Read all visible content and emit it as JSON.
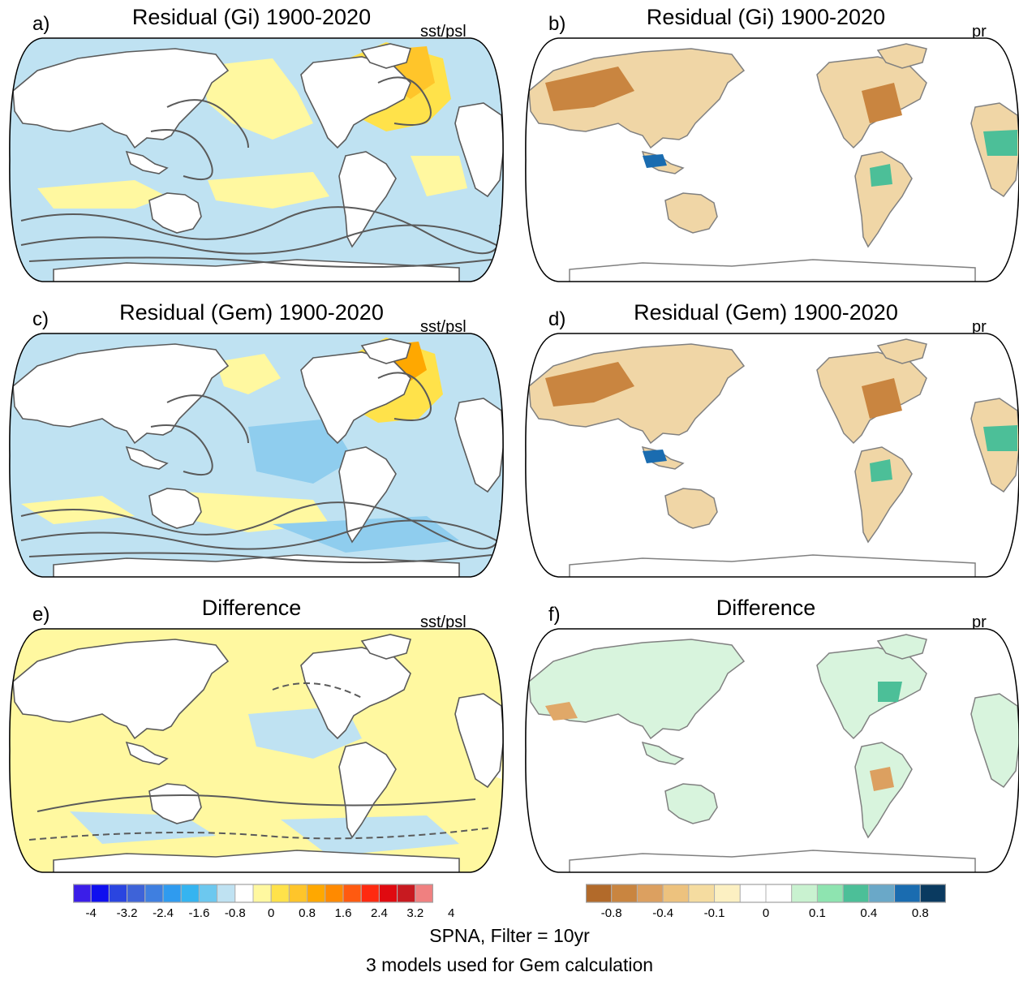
{
  "panels": [
    {
      "id": "a",
      "letter": "a)",
      "title": "Residual (Gi) 1900-2020",
      "variable": "sst/psl",
      "field": "sst"
    },
    {
      "id": "b",
      "letter": "b)",
      "title": "Residual (Gi) 1900-2020",
      "variable": "pr",
      "field": "pr"
    },
    {
      "id": "c",
      "letter": "c)",
      "title": "Residual (Gem) 1900-2020",
      "variable": "sst/psl",
      "field": "sst"
    },
    {
      "id": "d",
      "letter": "d)",
      "title": "Residual (Gem) 1900-2020",
      "variable": "pr",
      "field": "pr"
    },
    {
      "id": "e",
      "letter": "e)",
      "title": "Difference",
      "variable": "sst/psl",
      "field": "sst"
    },
    {
      "id": "f",
      "letter": "f)",
      "title": "Difference",
      "variable": "pr",
      "field": "pr"
    }
  ],
  "colorbars": {
    "sst": {
      "colors": [
        "#3b1ee8",
        "#0f0fef",
        "#2a45e0",
        "#3e63d8",
        "#3f7fe0",
        "#2f9bef",
        "#35b4f0",
        "#6cc8ef",
        "#bfe2f2",
        "#ffffff",
        "#fff8a0",
        "#ffe24a",
        "#ffc52a",
        "#ffa800",
        "#ff8a00",
        "#ff5a10",
        "#ff2a10",
        "#e00a10",
        "#c81a20",
        "#f08080"
      ],
      "labels": [
        "-4",
        "-3.2",
        "-2.4",
        "-1.6",
        "-0.8",
        "0",
        "0.8",
        "1.6",
        "2.4",
        "3.2",
        "4"
      ]
    },
    "pr": {
      "colors": [
        "#b26a2a",
        "#c98540",
        "#dca060",
        "#edc27e",
        "#f5dca0",
        "#fcf0c2",
        "#ffffff",
        "#ffffff",
        "#c9f2d0",
        "#8ee4b0",
        "#4cbf98",
        "#6aa8c8",
        "#1a6cb0",
        "#0a3a60"
      ],
      "labels": [
        "-0.8",
        "-0.4",
        "-0.1",
        "0",
        "0.1",
        "0.4",
        "0.8"
      ]
    }
  },
  "footer": {
    "line1": "SPNA, Filter = 10yr",
    "line2": "3 models used for Gem calculation"
  }
}
